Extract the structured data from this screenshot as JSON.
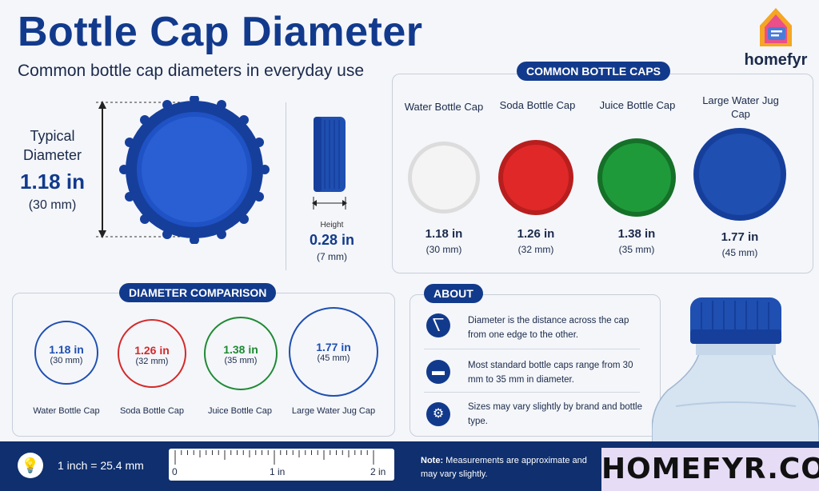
{
  "header": {
    "title": "Bottle Cap Diameter",
    "subtitle": "Common bottle cap diameters in everyday use"
  },
  "logo": {
    "text": "homefyr"
  },
  "typical": {
    "label": "Typical Diameter",
    "value_in": "1.18 in",
    "value_mm": "(30 mm)"
  },
  "height": {
    "label": "Height",
    "value_in": "0.28 in",
    "value_mm": "(7 mm)"
  },
  "common": {
    "heading": "COMMON BOTTLE CAPS",
    "caps": [
      {
        "name": "Water Bottle Cap",
        "in": "1.18 in",
        "mm": "(30 mm)",
        "color": "#f2f2f2"
      },
      {
        "name": "Soda Bottle Cap",
        "in": "1.26 in",
        "mm": "(32 mm)",
        "color": "#e02828"
      },
      {
        "name": "Juice Bottle Cap",
        "in": "1.38 in",
        "mm": "(35 mm)",
        "color": "#1f9a3a"
      },
      {
        "name": "Large Water Jug Cap",
        "in": "1.77 in",
        "mm": "(45 mm)",
        "color": "#1f4fb0"
      }
    ]
  },
  "comparison": {
    "heading": "DIAMETER COMPARISON",
    "items": [
      {
        "in": "1.18 in",
        "mm": "(30 mm)",
        "name": "Water Bottle Cap",
        "color": "#1f4fb0"
      },
      {
        "in": "1.26 in",
        "mm": "(32 mm)",
        "name": "Soda Bottle Cap",
        "color": "#d42a2a"
      },
      {
        "in": "1.38 in",
        "mm": "(35 mm)",
        "name": "Juice Bottle Cap",
        "color": "#1f8a33"
      },
      {
        "in": "1.77 in",
        "mm": "(45 mm)",
        "name": "Large Water Jug Cap",
        "color": "#1f4fb0"
      }
    ]
  },
  "about": {
    "heading": "ABOUT",
    "items": [
      {
        "icon": "ruler-icon",
        "text": "Diameter is the distance across the cap from one edge to the other."
      },
      {
        "icon": "cap-icon",
        "text": "Most standard bottle caps range from 30 mm to 35 mm in diameter."
      },
      {
        "icon": "gear-icon",
        "text": "Sizes may vary slightly by brand and bottle type."
      }
    ]
  },
  "footer": {
    "conversion": "1 inch = 25.4 mm",
    "ruler_labels": [
      "0",
      "1 in",
      "2 in"
    ],
    "note_label": "Note:",
    "note_text": "Measurements are approximate and may vary slightly.",
    "site": "HOMEFYR.COM"
  },
  "colors": {
    "brand": "#123a8c",
    "cap_blue": "#1f4fb0"
  }
}
